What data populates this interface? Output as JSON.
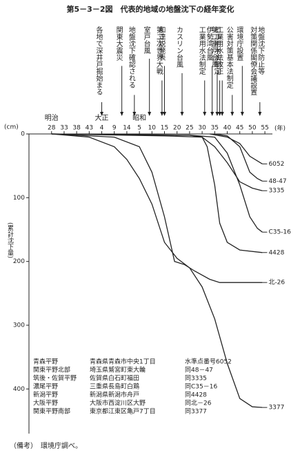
{
  "chart_data": {
    "type": "line",
    "title": "第5－3－2図　代表的地域の地盤沈下の経年変化",
    "y_unit": "(cm)",
    "x_unit": "(年)",
    "y_label": "(累計沈下量)",
    "eras": [
      "明治",
      "大正",
      "昭和"
    ],
    "xlim": [
      1886,
      1983
    ],
    "xticks": [
      {
        "value": 1895,
        "label": "28"
      },
      {
        "value": 1900,
        "label": "33"
      },
      {
        "value": 1905,
        "label": "38"
      },
      {
        "value": 1910,
        "label": "43"
      },
      {
        "value": 1915,
        "label": "4"
      },
      {
        "value": 1920,
        "label": "9"
      },
      {
        "value": 1925,
        "label": "14"
      },
      {
        "value": 1930,
        "label": "5"
      },
      {
        "value": 1935,
        "label": "10"
      },
      {
        "value": 1940,
        "label": "15"
      },
      {
        "value": 1945,
        "label": "20"
      },
      {
        "value": 1950,
        "label": "25"
      },
      {
        "value": 1955,
        "label": "30"
      },
      {
        "value": 1960,
        "label": "35"
      },
      {
        "value": 1965,
        "label": "40"
      },
      {
        "value": 1970,
        "label": "45"
      },
      {
        "value": 1975,
        "label": "50"
      },
      {
        "value": 1980,
        "label": "55"
      }
    ],
    "ylim": [
      0,
      470
    ],
    "yticks": [
      0,
      100,
      200,
      300,
      400
    ],
    "inverted_y": true,
    "color": "#222222",
    "series": [
      {
        "name": "6052",
        "x": [
          1958,
          1965,
          1970,
          1974,
          1979
        ],
        "values": [
          0,
          5,
          15,
          35,
          47
        ]
      },
      {
        "name": "48-47",
        "x": [
          1960,
          1965,
          1970,
          1974,
          1977,
          1979
        ],
        "values": [
          0,
          3,
          20,
          60,
          70,
          74
        ]
      },
      {
        "name": "3335",
        "x": [
          1895,
          1940,
          1955,
          1960,
          1965,
          1970,
          1975,
          1979
        ],
        "values": [
          0,
          3,
          5,
          20,
          45,
          75,
          85,
          89
        ]
      },
      {
        "name": "C35-16",
        "x": [
          1895,
          1950,
          1960,
          1965,
          1970,
          1974,
          1977,
          1979
        ],
        "values": [
          0,
          2,
          5,
          30,
          80,
          130,
          148,
          154
        ]
      },
      {
        "name": "4428",
        "x": [
          1895,
          1950,
          1955,
          1957,
          1960,
          1962,
          1965,
          1970,
          1979
        ],
        "values": [
          0,
          2,
          5,
          20,
          80,
          140,
          170,
          182,
          186
        ]
      },
      {
        "name": "北-26",
        "x": [
          1895,
          1920,
          1930,
          1935,
          1940,
          1944,
          1948,
          1952,
          1958,
          1962,
          1979
        ],
        "values": [
          0,
          5,
          20,
          60,
          130,
          200,
          205,
          215,
          228,
          233,
          233
        ]
      },
      {
        "name": "3377",
        "x": [
          1895,
          1910,
          1920,
          1925,
          1930,
          1935,
          1940,
          1945,
          1950,
          1955,
          1960,
          1965,
          1970,
          1975,
          1979
        ],
        "values": [
          0,
          5,
          20,
          40,
          70,
          110,
          170,
          195,
          210,
          240,
          290,
          360,
          415,
          428,
          429
        ]
      }
    ],
    "events": [
      {
        "lines": [
          "各地で深井戸掘始まる"
        ],
        "x": 1915
      },
      {
        "lines": [
          "関東大震災"
        ],
        "x": 1923
      },
      {
        "lines": [
          "地盤沈下確認される"
        ],
        "x": 1928
      },
      {
        "lines": [
          "室戸台風"
        ],
        "x": 1934
      },
      {
        "lines": [
          "第二次世界大戦"
        ],
        "x": 1939
      },
      {
        "lines": [
          "和達説発表"
        ],
        "x": 1940
      },
      {
        "lines": [
          "カスリン台風"
        ],
        "x": 1947
      },
      {
        "lines": [
          "工業用水法制定"
        ],
        "x": 1956
      },
      {
        "lines": [
          "伊勢湾台風"
        ],
        "x": 1959
      },
      {
        "lines": [
          "第二室戸台風"
        ],
        "x": 1961
      },
      {
        "lines": [
          "ビル用水法制定"
        ],
        "x": 1962
      },
      {
        "lines": [
          "工業用水法改正"
        ],
        "x": 1963
      },
      {
        "lines": [
          "公害対策基本法制定"
        ],
        "x": 1967
      },
      {
        "lines": [
          "環境庁設置"
        ],
        "x": 1971
      },
      {
        "lines": [
          "地盤沈下防止等",
          "対策関係閣僚会議設置"
        ],
        "x": 1978
      }
    ]
  },
  "legend_table": {
    "rows": [
      [
        "青森平野",
        "青森県青森市中央1丁目",
        "水準点番号6052"
      ],
      [
        "関東平野北部",
        "埼玉県鷲宮町東大輪",
        "同48－47"
      ],
      [
        "筑後・佐賀平野",
        "佐賀県白石町福田",
        "同3335"
      ],
      [
        "濃尾平野",
        "三重県長島町白鶏",
        "同C35－16"
      ],
      [
        "新潟平野",
        "新潟県新潟市舟戸",
        "同4428"
      ],
      [
        "大阪平野",
        "大阪市西淀川区大野",
        "同北－26"
      ],
      [
        "関東平野南部",
        "東京都江東区亀戸7丁目",
        "同3377"
      ]
    ]
  },
  "note": "（備考）　環境庁調べ。"
}
